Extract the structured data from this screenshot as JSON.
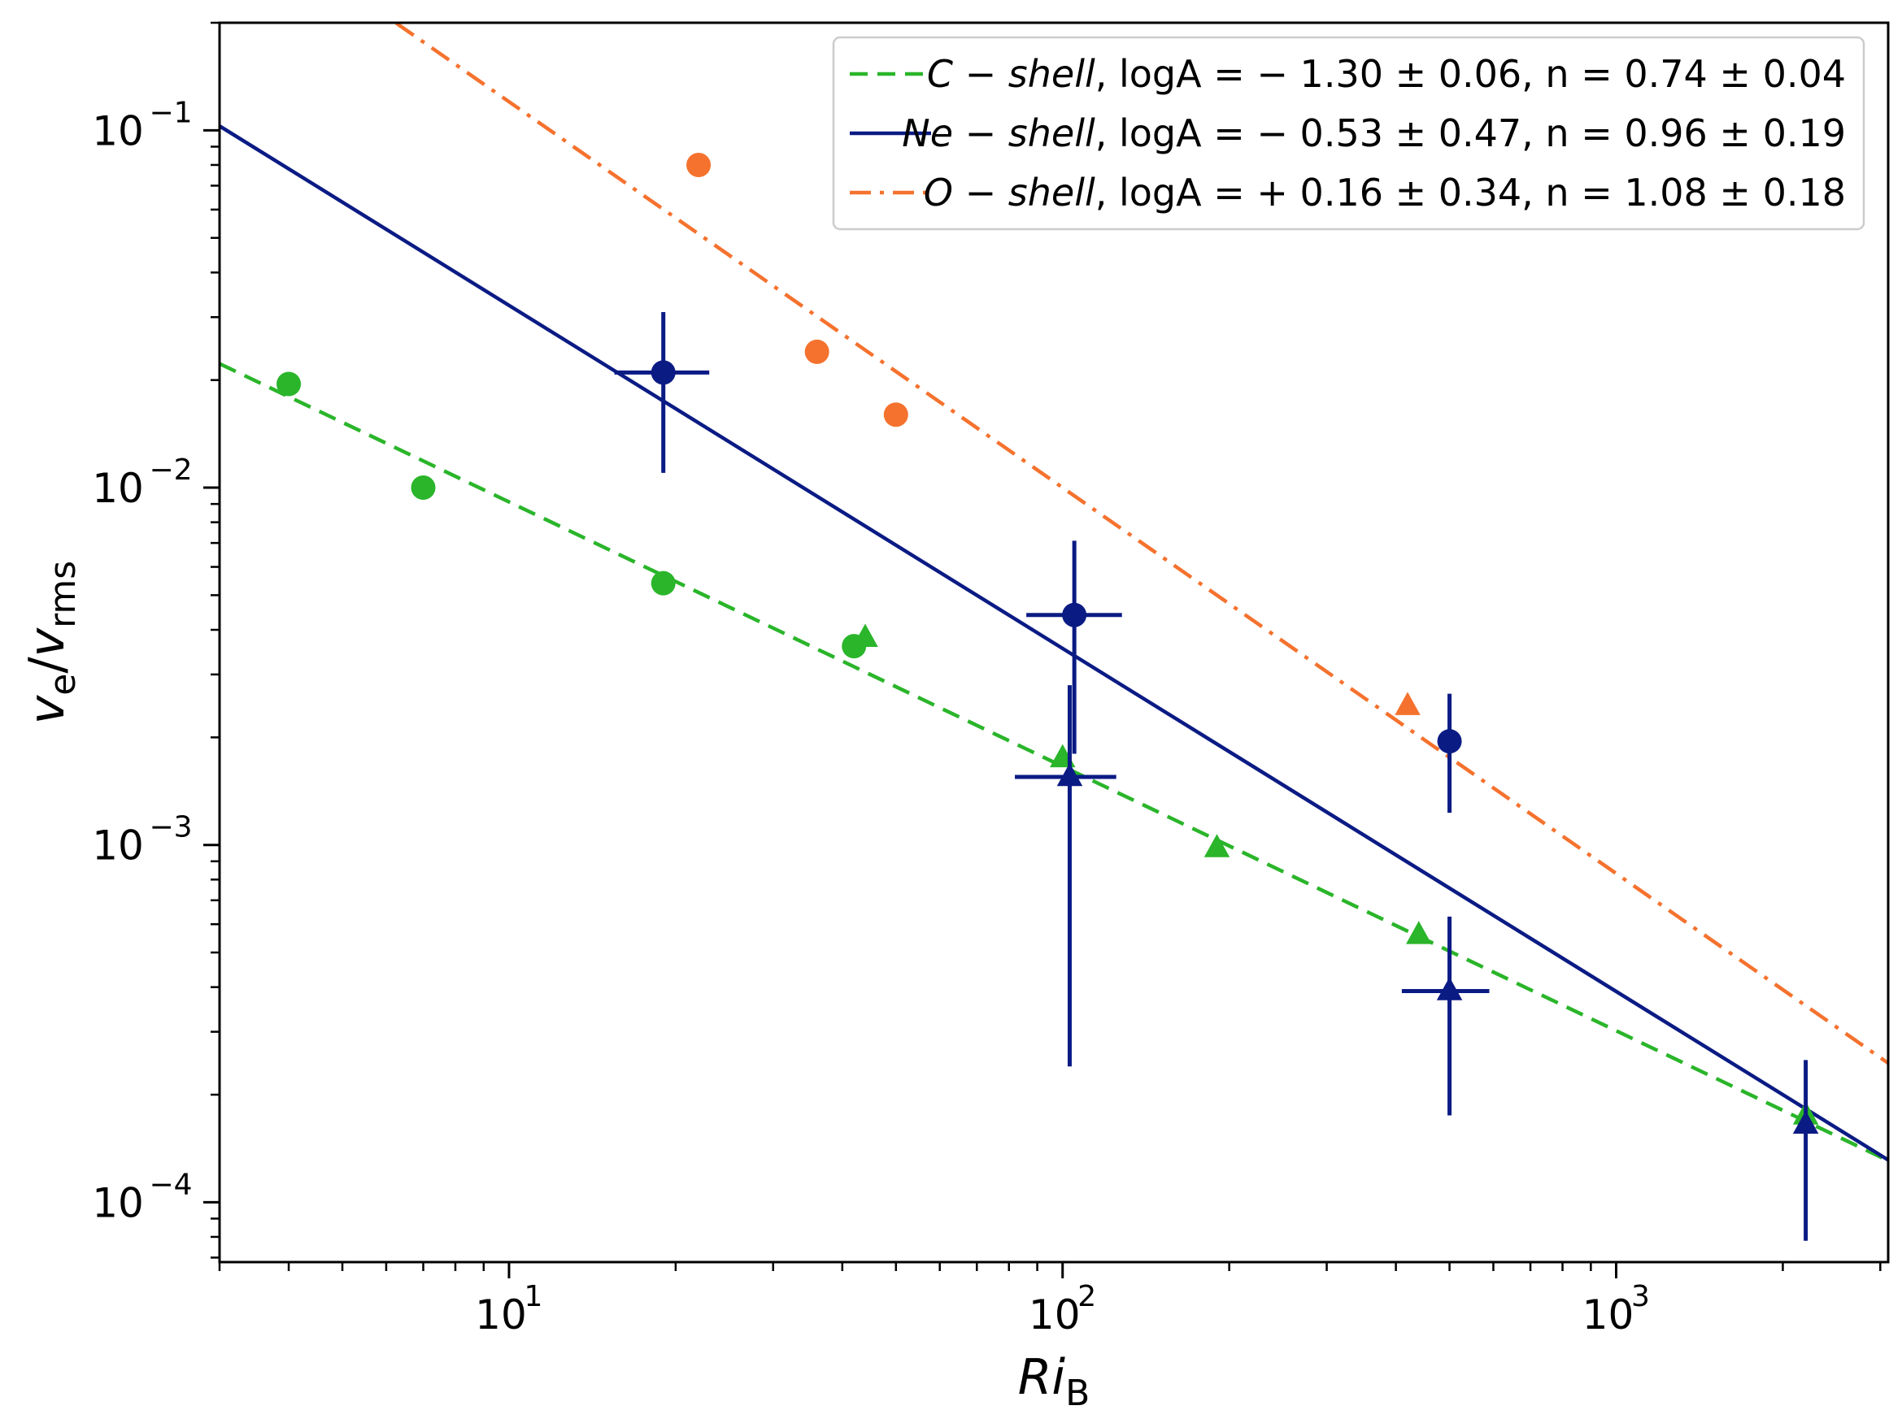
{
  "chart_data": {
    "type": "scatter",
    "title": "",
    "xlabel": "Ri",
    "xlabel_sub": "B",
    "ylabel_main": "v",
    "ylabel_sub_e": "e",
    "ylabel_sep": "/",
    "ylabel_sub_rms": "rms",
    "xscale": "log",
    "yscale": "log",
    "xlim": [
      3.0,
      3100
    ],
    "ylim": [
      6.8e-05,
      0.2
    ],
    "x_ticks": [
      {
        "value": 10,
        "base": "10",
        "exp": "1"
      },
      {
        "value": 100,
        "base": "10",
        "exp": "2"
      },
      {
        "value": 1000,
        "base": "10",
        "exp": "3"
      }
    ],
    "y_ticks": [
      {
        "value": 0.1,
        "base": "10",
        "exp": "−1"
      },
      {
        "value": 0.01,
        "base": "10",
        "exp": "−2"
      },
      {
        "value": 0.001,
        "base": "10",
        "exp": "−3"
      },
      {
        "value": 0.0001,
        "base": "10",
        "exp": "−4"
      }
    ],
    "legend_position": "top-right",
    "fits": [
      {
        "name": "C-shell",
        "label_shell": "C − shell",
        "label_fit": ", logA = − 1.30 ± 0.06, n = 0.74 ± 0.04",
        "logA": -1.3,
        "n": 0.74,
        "color": "#2ab52a",
        "style": "dashed"
      },
      {
        "name": "Ne-shell",
        "label_shell": "Ne − shell",
        "label_fit": ", logA = − 0.53 ± 0.47, n = 0.96 ± 0.19",
        "logA": -0.53,
        "n": 0.96,
        "color": "#0b1b84",
        "style": "solid"
      },
      {
        "name": "O-shell",
        "label_shell": "O − shell",
        "label_fit": ", logA = + 0.16 ± 0.34, n = 1.08 ± 0.18",
        "logA": 0.16,
        "n": 1.08,
        "color": "#f5722e",
        "style": "dashdot"
      }
    ],
    "series": [
      {
        "name": "C-shell circles",
        "marker": "circle",
        "color": "#2ab52a",
        "points": [
          {
            "x": 4.0,
            "y": 0.0195
          },
          {
            "x": 7.0,
            "y": 0.01
          },
          {
            "x": 19.0,
            "y": 0.0054
          },
          {
            "x": 42.0,
            "y": 0.0036
          }
        ]
      },
      {
        "name": "C-shell triangles",
        "marker": "triangle",
        "color": "#2ab52a",
        "points": [
          {
            "x": 44.0,
            "y": 0.0038
          },
          {
            "x": 100.0,
            "y": 0.00175
          },
          {
            "x": 190.0,
            "y": 0.00098
          },
          {
            "x": 440.0,
            "y": 0.00056
          },
          {
            "x": 2200.0,
            "y": 0.000175
          }
        ]
      },
      {
        "name": "Ne-shell circles",
        "marker": "circle",
        "color": "#0b1b84",
        "points": [
          {
            "x": 19.0,
            "y": 0.021,
            "xerr": [
              15.5,
              23.0
            ],
            "yerr": [
              0.011,
              0.031
            ]
          },
          {
            "x": 105.0,
            "y": 0.0044,
            "xerr": [
              86.0,
              128.0
            ],
            "yerr": [
              0.0018,
              0.0071
            ]
          },
          {
            "x": 500.0,
            "y": 0.00195,
            "yerr": [
              0.00123,
              0.00265
            ]
          }
        ]
      },
      {
        "name": "Ne-shell triangles",
        "marker": "triangle",
        "color": "#0b1b84",
        "points": [
          {
            "x": 103.0,
            "y": 0.00155,
            "xerr": [
              82.0,
              125.0
            ],
            "yerr": [
              0.00024,
              0.0028
            ]
          },
          {
            "x": 500.0,
            "y": 0.00039,
            "xerr": [
              410.0,
              590.0
            ],
            "yerr": [
              0.000175,
              0.00063
            ]
          },
          {
            "x": 2200.0,
            "y": 0.000165,
            "yerr": [
              7.8e-05,
              0.00025
            ]
          }
        ]
      },
      {
        "name": "O-shell circles",
        "marker": "circle",
        "color": "#f5722e",
        "points": [
          {
            "x": 22.0,
            "y": 0.08
          },
          {
            "x": 36.0,
            "y": 0.024
          },
          {
            "x": 50.0,
            "y": 0.016
          }
        ]
      },
      {
        "name": "O-shell triangles",
        "marker": "triangle",
        "color": "#f5722e",
        "points": [
          {
            "x": 420.0,
            "y": 0.00245
          }
        ]
      }
    ]
  }
}
